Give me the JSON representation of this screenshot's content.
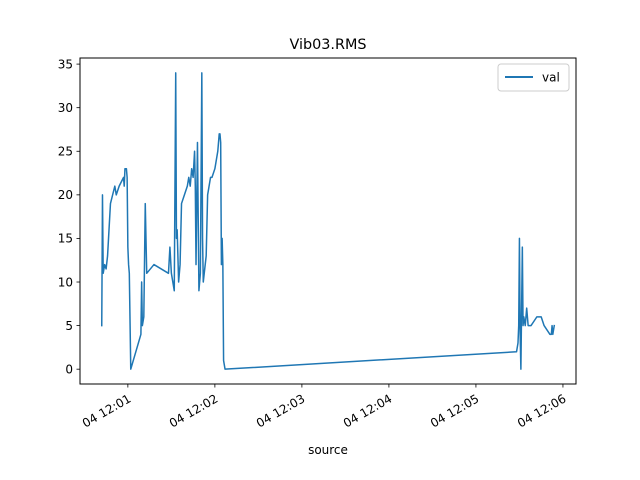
{
  "chart_data": {
    "type": "line",
    "title": "Vib03.RMS",
    "xlabel": "source",
    "ylabel": "",
    "xlim": [
      "04 12:00:27",
      "04 12:06:09"
    ],
    "ylim": [
      -1.7,
      35.7
    ],
    "y_ticks": [
      0,
      5,
      10,
      15,
      20,
      25,
      30,
      35
    ],
    "x_ticks": [
      {
        "t": "04 12:01:00",
        "label": "04 12:01"
      },
      {
        "t": "04 12:02:00",
        "label": "04 12:02"
      },
      {
        "t": "04 12:03:00",
        "label": "04 12:03"
      },
      {
        "t": "04 12:04:00",
        "label": "04 12:04"
      },
      {
        "t": "04 12:05:00",
        "label": "04 12:05"
      },
      {
        "t": "04 12:06:00",
        "label": "04 12:06"
      }
    ],
    "legend": {
      "position": "top-right",
      "entries": [
        "val"
      ]
    },
    "grid": false,
    "series": [
      {
        "name": "val",
        "color": "#1f77b4",
        "points": [
          [
            "04 12:00:42",
            5
          ],
          [
            "04 12:00:42.5",
            20
          ],
          [
            "04 12:00:43",
            11
          ],
          [
            "04 12:00:44",
            12
          ],
          [
            "04 12:00:45",
            11.5
          ],
          [
            "04 12:00:46",
            13
          ],
          [
            "04 12:00:47",
            16
          ],
          [
            "04 12:00:48",
            19
          ],
          [
            "04 12:00:51",
            21
          ],
          [
            "04 12:00:52",
            20
          ],
          [
            "04 12:00:54",
            21
          ],
          [
            "04 12:00:57",
            22
          ],
          [
            "04 12:00:57.5",
            21
          ],
          [
            "04 12:00:58",
            23
          ],
          [
            "04 12:00:59",
            23
          ],
          [
            "04 12:00:59.5",
            22
          ],
          [
            "04 12:01:00",
            14
          ],
          [
            "04 12:01:00.5",
            12
          ],
          [
            "04 12:01:01",
            11
          ],
          [
            "04 12:01:02",
            0
          ],
          [
            "04 12:01:09",
            4
          ],
          [
            "04 12:01:09.5",
            10
          ],
          [
            "04 12:01:10",
            5
          ],
          [
            "04 12:01:11",
            6
          ],
          [
            "04 12:01:12",
            19
          ],
          [
            "04 12:01:13",
            11
          ],
          [
            "04 12:01:18",
            12
          ],
          [
            "04 12:01:28",
            11
          ],
          [
            "04 12:01:29",
            14
          ],
          [
            "04 12:01:30",
            11
          ],
          [
            "04 12:01:31",
            10
          ],
          [
            "04 12:01:32",
            9
          ],
          [
            "04 12:01:33",
            34
          ],
          [
            "04 12:01:33.5",
            15
          ],
          [
            "04 12:01:34",
            16
          ],
          [
            "04 12:01:35",
            10
          ],
          [
            "04 12:01:36",
            12
          ],
          [
            "04 12:01:37",
            19
          ],
          [
            "04 12:01:39",
            20
          ],
          [
            "04 12:01:41",
            21
          ],
          [
            "04 12:01:42",
            22
          ],
          [
            "04 12:01:43",
            21
          ],
          [
            "04 12:01:44",
            23
          ],
          [
            "04 12:01:45",
            22
          ],
          [
            "04 12:01:46",
            25
          ],
          [
            "04 12:01:46.5",
            21
          ],
          [
            "04 12:01:47",
            12
          ],
          [
            "04 12:01:48",
            26
          ],
          [
            "04 12:01:49",
            9
          ],
          [
            "04 12:01:50",
            11
          ],
          [
            "04 12:01:51",
            34
          ],
          [
            "04 12:01:51.5",
            15
          ],
          [
            "04 12:01:52",
            10
          ],
          [
            "04 12:01:54",
            13
          ],
          [
            "04 12:01:55",
            20
          ],
          [
            "04 12:01:56",
            21
          ],
          [
            "04 12:01:57",
            22
          ],
          [
            "04 12:01:58",
            22
          ],
          [
            "04 12:02:00",
            23
          ],
          [
            "04 12:02:02",
            25
          ],
          [
            "04 12:02:03",
            27
          ],
          [
            "04 12:02:03.5",
            27
          ],
          [
            "04 12:02:04",
            26
          ],
          [
            "04 12:02:04.5",
            12
          ],
          [
            "04 12:02:05",
            15
          ],
          [
            "04 12:02:05.5",
            12
          ],
          [
            "04 12:02:06",
            1
          ],
          [
            "04 12:02:07",
            0
          ],
          [
            "04 12:05:28",
            2
          ],
          [
            "04 12:05:29",
            3
          ],
          [
            "04 12:05:29.5",
            5
          ],
          [
            "04 12:05:30",
            15
          ],
          [
            "04 12:05:30.5",
            4
          ],
          [
            "04 12:05:31",
            0
          ],
          [
            "04 12:05:32",
            14
          ],
          [
            "04 12:05:32.5",
            5
          ],
          [
            "04 12:05:33",
            6
          ],
          [
            "04 12:05:34",
            5
          ],
          [
            "04 12:05:35",
            7
          ],
          [
            "04 12:05:36",
            5
          ],
          [
            "04 12:05:38",
            5
          ],
          [
            "04 12:05:40",
            5.5
          ],
          [
            "04 12:05:42",
            6
          ],
          [
            "04 12:05:45",
            6
          ],
          [
            "04 12:05:47",
            5
          ],
          [
            "04 12:05:49",
            4.5
          ],
          [
            "04 12:05:51",
            4
          ],
          [
            "04 12:05:52",
            4
          ],
          [
            "04 12:05:52.5",
            5
          ],
          [
            "04 12:05:53",
            4
          ],
          [
            "04 12:05:54",
            5
          ]
        ]
      }
    ]
  }
}
